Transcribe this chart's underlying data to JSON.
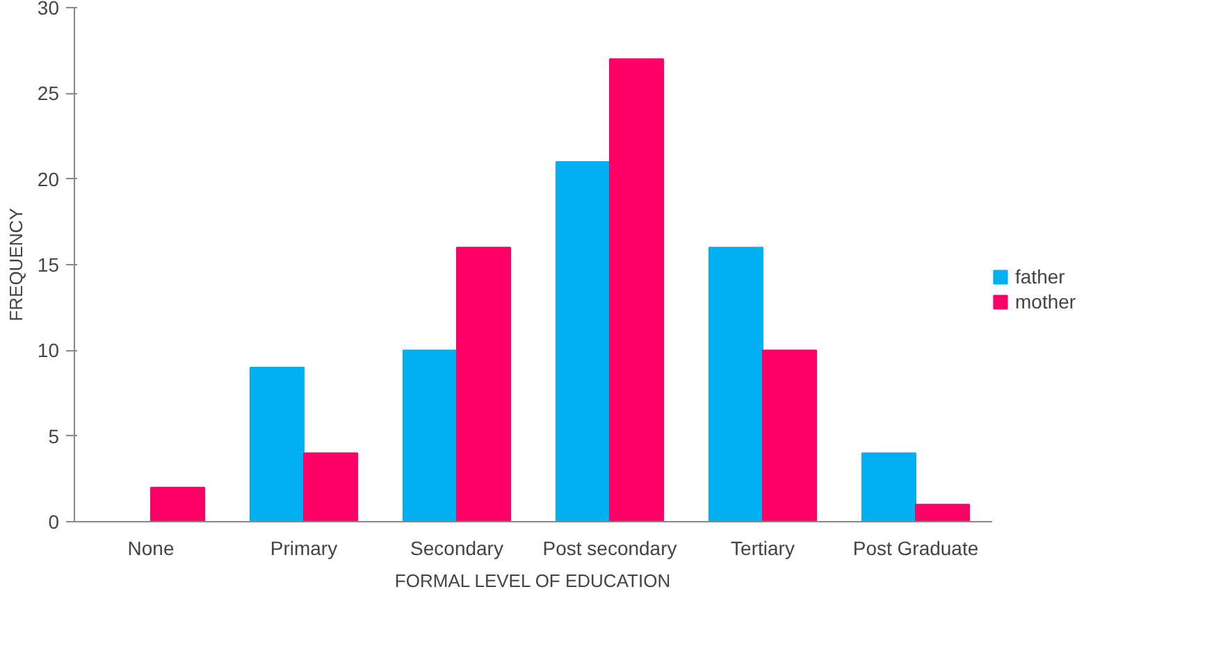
{
  "chart_data": {
    "type": "bar",
    "xlabel": "FORMAL LEVEL OF EDUCATION",
    "ylabel": "FREQUENCY",
    "categories": [
      "None",
      "Primary",
      "Secondary",
      "Post secondary",
      "Tertiary",
      "Post Graduate"
    ],
    "series": [
      {
        "name": "father",
        "color": "#00b0f0",
        "values": [
          0,
          9,
          10,
          21,
          16,
          4
        ]
      },
      {
        "name": "mother",
        "color": "#ff0066",
        "values": [
          2,
          4,
          16,
          27,
          10,
          1
        ]
      }
    ],
    "ylim": [
      0,
      30
    ],
    "yticks": [
      0,
      5,
      10,
      15,
      20,
      25,
      30
    ],
    "grid": false,
    "legend": "right"
  }
}
